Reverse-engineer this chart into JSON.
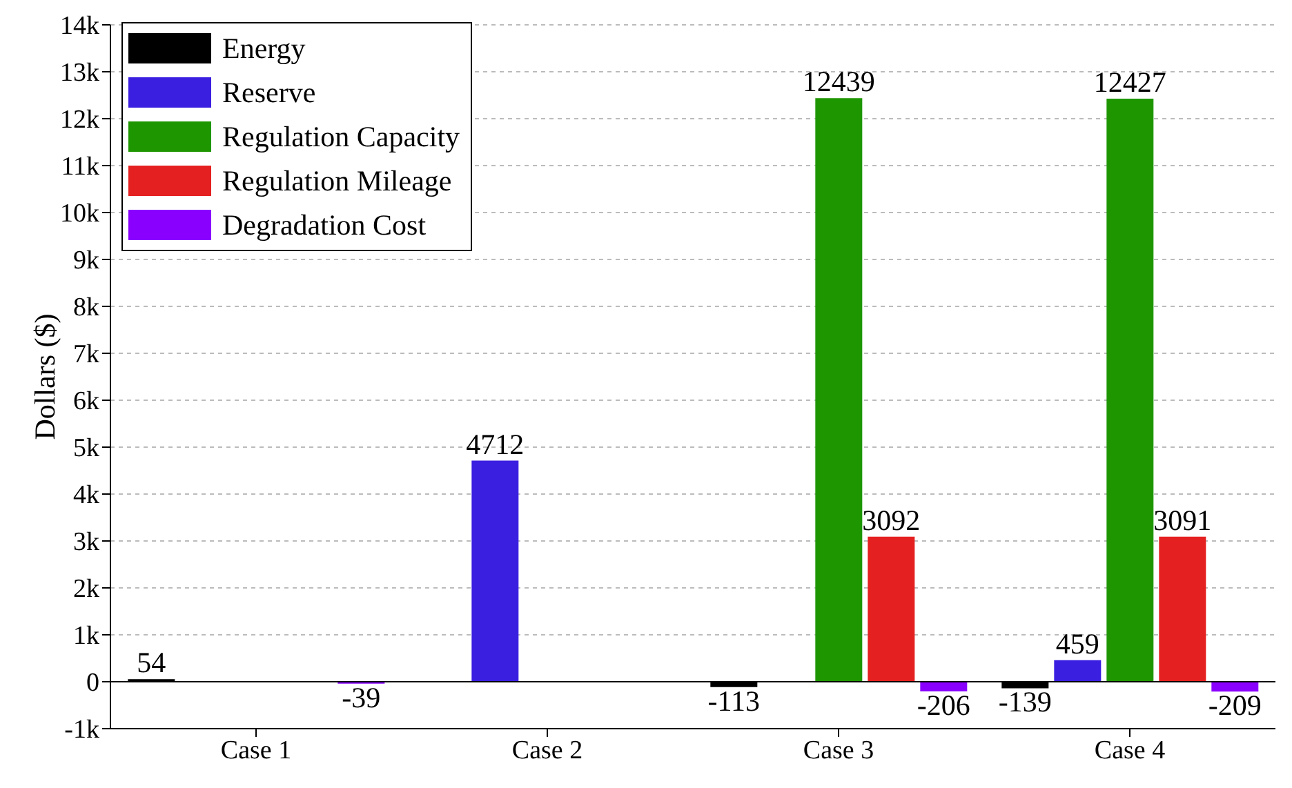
{
  "chart_data": {
    "type": "bar",
    "ylabel": "Dollars ($)",
    "categories": [
      "Case 1",
      "Case 2",
      "Case 3",
      "Case 4"
    ],
    "series": [
      {
        "name": "Energy",
        "color": "#000000",
        "values": [
          54,
          null,
          -113,
          -139
        ],
        "value_labels": [
          "54",
          null,
          "-113",
          "-139"
        ]
      },
      {
        "name": "Reserve",
        "color": "#3a1fe0",
        "values": [
          null,
          4712,
          null,
          459
        ],
        "value_labels": [
          null,
          "4712",
          null,
          "459"
        ]
      },
      {
        "name": "Regulation Capacity",
        "color": "#1e9600",
        "values": [
          null,
          null,
          12439,
          12427
        ],
        "value_labels": [
          null,
          null,
          "12439",
          "12427"
        ]
      },
      {
        "name": "Regulation Mileage",
        "color": "#e52020",
        "values": [
          null,
          null,
          3092,
          3091
        ],
        "value_labels": [
          null,
          null,
          "3092",
          "3091"
        ]
      },
      {
        "name": "Degradation Cost",
        "color": "#8a00ff",
        "values": [
          -39,
          null,
          -206,
          -209
        ],
        "value_labels": [
          "-39",
          null,
          "-206",
          "-209"
        ]
      }
    ],
    "ylim": [
      -1000,
      14000
    ],
    "yticks": [
      {
        "value": -1000,
        "label": "-1k"
      },
      0,
      {
        "value": 1000,
        "label": "1k"
      },
      {
        "value": 2000,
        "label": "2k"
      },
      {
        "value": 3000,
        "label": "3k"
      },
      {
        "value": 4000,
        "label": "4k"
      },
      {
        "value": 5000,
        "label": "5k"
      },
      {
        "value": 6000,
        "label": "6k"
      },
      {
        "value": 7000,
        "label": "7k"
      },
      {
        "value": 8000,
        "label": "8k"
      },
      {
        "value": 9000,
        "label": "9k"
      },
      {
        "value": 10000,
        "label": "10k"
      },
      {
        "value": 11000,
        "label": "11k"
      },
      {
        "value": 12000,
        "label": "12k"
      },
      {
        "value": 13000,
        "label": "13k"
      },
      {
        "value": 14000,
        "label": "14k"
      }
    ],
    "grid": "y",
    "legend": "top left"
  }
}
